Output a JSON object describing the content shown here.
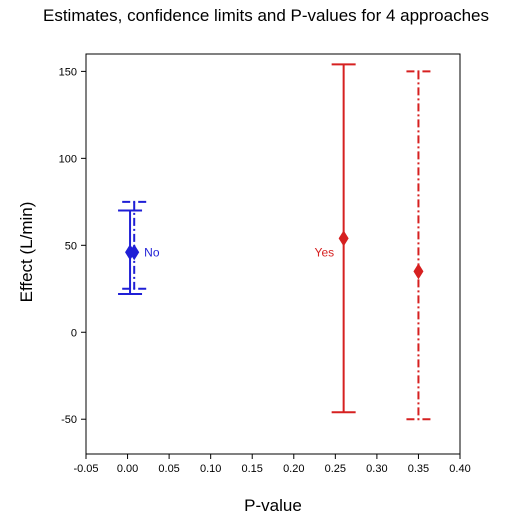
{
  "chart_data": {
    "type": "errorbar",
    "title": "Estimates, confidence limits and P-values for 4 approaches",
    "xlabel": "P-value",
    "ylabel": "Effect (L/min)",
    "xlim": [
      -0.05,
      0.4
    ],
    "ylim": [
      -70,
      160
    ],
    "x_ticks": [
      "-0.05",
      "0.00",
      "0.05",
      "0.10",
      "0.15",
      "0.20",
      "0.25",
      "0.30",
      "0.35",
      "0.40"
    ],
    "y_ticks": [
      "-50",
      "0",
      "50",
      "100",
      "150"
    ],
    "grid": false,
    "series": [
      {
        "x": 0.003,
        "estimate": 46,
        "lower": 22,
        "upper": 70,
        "color": "#1f1fd6",
        "style": "solid"
      },
      {
        "x": 0.008,
        "estimate": 46,
        "lower": 25,
        "upper": 75,
        "color": "#1f1fd6",
        "style": "dashdot"
      },
      {
        "x": 0.26,
        "estimate": 54,
        "lower": -46,
        "upper": 154,
        "color": "#d62020",
        "style": "solid"
      },
      {
        "x": 0.35,
        "estimate": 35,
        "lower": -50,
        "upper": 150,
        "color": "#d62020",
        "style": "dashdot"
      }
    ],
    "annotations": [
      {
        "text": "No",
        "x": 0.02,
        "y": 46,
        "color": "#1f1fd6"
      },
      {
        "text": "Yes",
        "x": 0.225,
        "y": 46,
        "color": "#d62020"
      }
    ]
  }
}
